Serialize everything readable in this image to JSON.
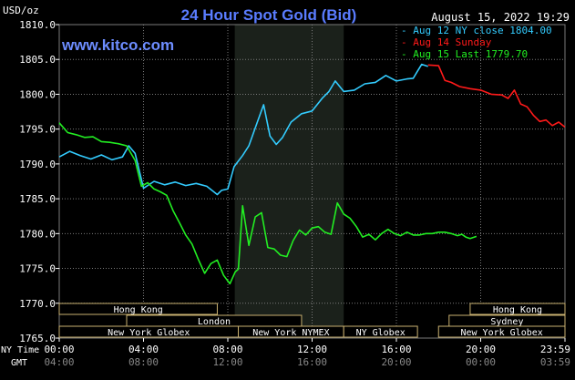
{
  "chart_data": {
    "type": "line",
    "title": "24 Hour Spot Gold (Bid)",
    "site": "www.kitco.com",
    "timestamp": "August 15, 2022 19:29",
    "ylabel": "USD/oz",
    "ylim": [
      1765,
      1810
    ],
    "yticks": [
      "1810.0",
      "1805.0",
      "1800.0",
      "1795.0",
      "1790.0",
      "1785.0",
      "1780.0",
      "1775.0",
      "1770.0",
      "1765.0"
    ],
    "x_axis_label_ny": "NY Time",
    "x_axis_label_gmt": "GMT",
    "x_ticks_ny": [
      "00:00",
      "04:00",
      "08:00",
      "12:00",
      "16:00",
      "20:00",
      "23:59"
    ],
    "x_ticks_gmt": [
      "04:00",
      "08:00",
      "12:00",
      "16:00",
      "20:00",
      "00:00",
      "03:59"
    ],
    "colors": {
      "background": "#000000",
      "plot_area": "#000000",
      "nymex_highlight": "#1b211b",
      "grid": "#7a7a7a",
      "title": "#5a7cff",
      "site": "#6d8dff",
      "series_close": "#33ccff",
      "series_sunday": "#ff1a1a",
      "series_last": "#22ee22",
      "session_box": "#c8b070",
      "axis_text": "#ffffff"
    },
    "sessions": [
      {
        "label": "Hong Kong",
        "row": 0,
        "start": -1.0,
        "end": 7.5
      },
      {
        "label": "London",
        "row": 1,
        "start": 3.2,
        "end": 11.5
      },
      {
        "label": "New York Globex",
        "row": 2,
        "start": 0.0,
        "end": 8.5
      },
      {
        "label": "New York NYMEX",
        "row": 2,
        "start": 8.5,
        "end": 13.5
      },
      {
        "label": "NY Globex",
        "row": 2,
        "start": 13.5,
        "end": 17.0
      },
      {
        "label": "Hong Kong",
        "row": 0,
        "start": 19.5,
        "end": 25.0
      },
      {
        "label": "Sydney",
        "row": 1,
        "start": 18.5,
        "end": 25.0
      },
      {
        "label": "New York Globex",
        "row": 2,
        "start": 18.0,
        "end": 25.0
      }
    ],
    "nymex_window": [
      8.33,
      13.5
    ],
    "series": [
      {
        "name": "Aug 12 NY close 1804.00",
        "color": "#33ccff",
        "x": [
          0.0,
          0.5,
          1.0,
          1.5,
          2.0,
          2.5,
          3.0,
          3.3,
          3.6,
          4.0,
          4.5,
          5.0,
          5.5,
          6.0,
          6.5,
          7.0,
          7.5,
          7.7,
          8.0,
          8.3,
          8.7,
          9.0,
          9.4,
          9.7,
          10.0,
          10.3,
          10.6,
          11.0,
          11.5,
          12.0,
          12.5,
          12.8,
          13.1,
          13.5,
          14.0,
          14.5,
          15.0,
          15.5,
          16.0,
          16.5,
          16.8,
          17.0,
          17.2,
          17.5
        ],
        "y": [
          1791.0,
          1791.8,
          1791.2,
          1790.7,
          1791.3,
          1790.6,
          1791.0,
          1792.6,
          1791.5,
          1786.5,
          1787.5,
          1787.0,
          1787.4,
          1786.9,
          1787.2,
          1786.8,
          1785.6,
          1786.2,
          1786.4,
          1789.6,
          1791.2,
          1792.6,
          1796.0,
          1798.5,
          1794.0,
          1792.8,
          1793.8,
          1796.0,
          1797.2,
          1797.6,
          1799.5,
          1800.4,
          1801.9,
          1800.4,
          1800.6,
          1801.5,
          1801.7,
          1802.7,
          1801.9,
          1802.2,
          1802.3,
          1803.3,
          1804.3,
          1804.0
        ]
      },
      {
        "name": "Aug 14 Sunday",
        "color": "#ff1a1a",
        "x": [
          17.5,
          18.0,
          18.3,
          18.6,
          19.0,
          19.5,
          20.0,
          20.5,
          21.0,
          21.3,
          21.6,
          21.9,
          22.2,
          22.5,
          22.8,
          23.1,
          23.4,
          23.7,
          23.99
        ],
        "y": [
          1804.2,
          1804.1,
          1802.0,
          1801.7,
          1801.1,
          1800.8,
          1800.6,
          1800.0,
          1799.9,
          1799.4,
          1800.6,
          1798.6,
          1798.2,
          1797.0,
          1796.1,
          1796.3,
          1795.5,
          1796.0,
          1795.3
        ]
      },
      {
        "name": "Aug 15 Last 1779.70",
        "color": "#22ee22",
        "x": [
          0.0,
          0.4,
          0.8,
          1.2,
          1.6,
          2.0,
          2.4,
          2.8,
          3.2,
          3.6,
          3.9,
          4.2,
          4.5,
          4.8,
          5.1,
          5.4,
          5.7,
          6.0,
          6.3,
          6.6,
          6.9,
          7.2,
          7.5,
          7.8,
          8.1,
          8.35,
          8.5,
          8.7,
          9.0,
          9.3,
          9.6,
          9.9,
          10.2,
          10.5,
          10.8,
          11.1,
          11.4,
          11.7,
          12.0,
          12.3,
          12.6,
          12.9,
          13.2,
          13.5,
          13.8,
          14.1,
          14.4,
          14.7,
          15.0,
          15.3,
          15.6,
          15.9,
          16.2,
          16.5,
          16.8,
          17.1,
          17.4,
          17.7,
          18.0,
          18.3,
          18.6,
          18.9,
          19.1,
          19.3,
          19.5,
          19.8
        ],
        "y": [
          1795.9,
          1794.5,
          1794.2,
          1793.8,
          1793.9,
          1793.2,
          1793.1,
          1792.9,
          1792.6,
          1790.5,
          1786.8,
          1787.3,
          1786.4,
          1786.0,
          1785.5,
          1783.3,
          1781.6,
          1779.8,
          1778.5,
          1776.3,
          1774.3,
          1775.7,
          1776.2,
          1774.0,
          1772.8,
          1774.5,
          1774.9,
          1784.0,
          1778.3,
          1782.4,
          1783.0,
          1778.0,
          1777.8,
          1776.9,
          1776.7,
          1779.0,
          1780.5,
          1779.8,
          1780.8,
          1781.0,
          1780.2,
          1779.9,
          1784.4,
          1782.8,
          1782.2,
          1781.0,
          1779.5,
          1779.9,
          1779.1,
          1780.0,
          1780.6,
          1780.0,
          1779.7,
          1780.2,
          1779.8,
          1779.8,
          1780.0,
          1780.0,
          1780.2,
          1780.2,
          1780.0,
          1779.7,
          1779.9,
          1779.5,
          1779.3,
          1779.6
        ]
      }
    ]
  }
}
